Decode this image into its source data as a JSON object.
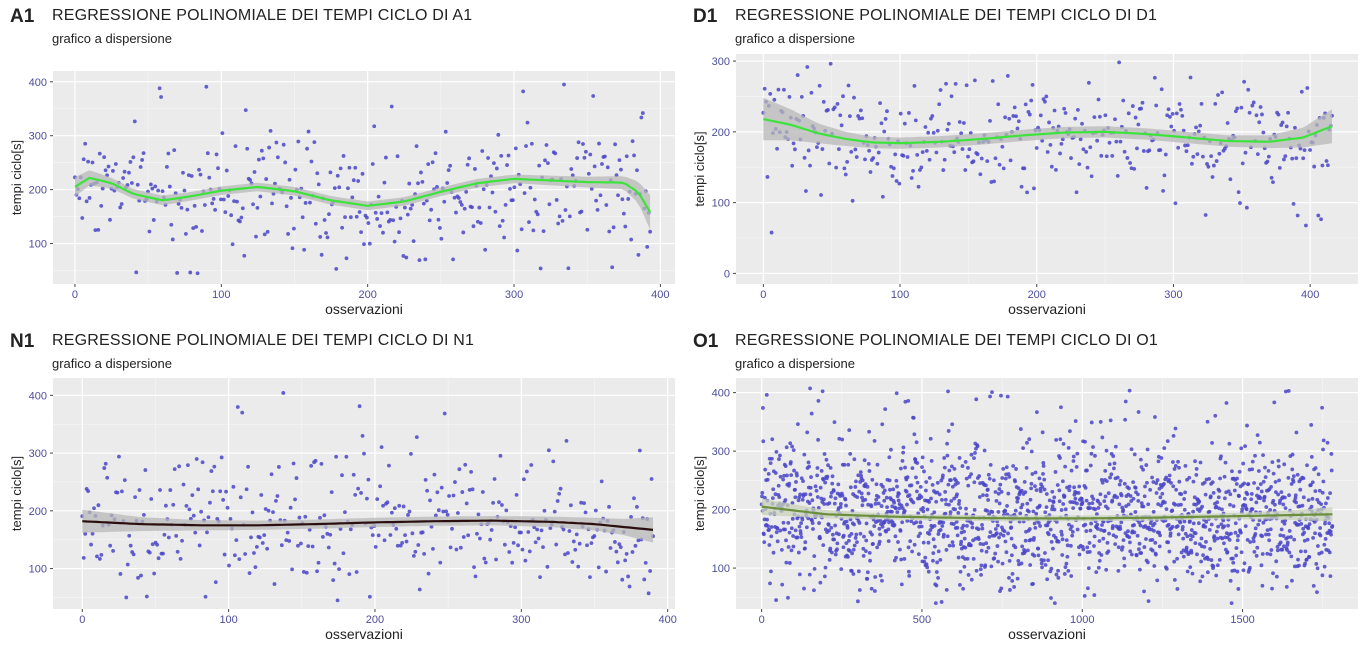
{
  "panels": [
    {
      "tag": "A1",
      "title": "REGRESSIONE POLINOMIALE DEI TEMPI CICLO DI A1",
      "subtitle": "grafico a dispersione",
      "xlabel": "osservazioni",
      "ylabel": "tempi ciclo[s]"
    },
    {
      "tag": "D1",
      "title": "REGRESSIONE POLINOMIALE DEI TEMPI CICLO DI D1",
      "subtitle": "grafico a dispersione",
      "xlabel": "osservazioni",
      "ylabel": "tempi ciclo[s]"
    },
    {
      "tag": "N1",
      "title": "REGRESSIONE POLINOMIALE DEI TEMPI CICLO DI N1",
      "subtitle": "grafico a dispersione",
      "xlabel": "osservazioni",
      "ylabel": "tempi ciclo[s]"
    },
    {
      "tag": "O1",
      "title": "REGRESSIONE POLINOMIALE DEI TEMPI CICLO DI O1",
      "subtitle": "grafico a dispersione",
      "xlabel": "osservazioni",
      "ylabel": "tempi ciclo[s]"
    }
  ],
  "chart_data": [
    {
      "type": "scatter",
      "title": "REGRESSIONE POLINOMIALE DEI TEMPI CICLO DI A1",
      "subtitle": "grafico a dispersione",
      "xlabel": "osservazioni",
      "ylabel": "tempi ciclo[s]",
      "xlim": [
        -15,
        410
      ],
      "ylim": [
        25,
        420
      ],
      "xticks": [
        0,
        100,
        200,
        300,
        400
      ],
      "yticks": [
        100,
        200,
        300,
        400
      ],
      "n_points": 395,
      "point_color": "#4a45c8",
      "point_y_range": [
        45,
        410
      ],
      "background": "#ebebeb",
      "grid": true,
      "fit": {
        "method": "polynomial regression with confidence band",
        "color": "#3be33b",
        "band_color": "#b8b8b8",
        "x": [
          0,
          10,
          25,
          40,
          60,
          80,
          100,
          125,
          150,
          175,
          200,
          225,
          250,
          275,
          300,
          325,
          350,
          375,
          385,
          393
        ],
        "y": [
          205,
          222,
          212,
          192,
          180,
          188,
          198,
          205,
          197,
          180,
          170,
          178,
          196,
          212,
          220,
          217,
          214,
          213,
          195,
          158
        ],
        "band_halfwidth": [
          18,
          14,
          10,
          9,
          9,
          8,
          8,
          8,
          8,
          8,
          8,
          8,
          8,
          8,
          8,
          9,
          10,
          12,
          20,
          32
        ]
      }
    },
    {
      "type": "scatter",
      "title": "REGRESSIONE POLINOMIALE DEI TEMPI CICLO DI D1",
      "subtitle": "grafico a dispersione",
      "xlabel": "osservazioni",
      "ylabel": "tempi ciclo[s]",
      "xlim": [
        -20,
        435
      ],
      "ylim": [
        -15,
        310
      ],
      "xticks": [
        0,
        100,
        200,
        300,
        400
      ],
      "yticks": [
        0,
        100,
        200,
        300
      ],
      "n_points": 415,
      "point_color": "#4a45c8",
      "point_y_range": [
        55,
        300
      ],
      "background": "#ebebeb",
      "grid": true,
      "fit": {
        "method": "polynomial regression with confidence band",
        "color": "#3be33b",
        "band_color": "#b8b8b8",
        "x": [
          0,
          20,
          40,
          60,
          80,
          100,
          130,
          160,
          190,
          220,
          250,
          280,
          310,
          340,
          370,
          395,
          416
        ],
        "y": [
          218,
          210,
          198,
          190,
          185,
          184,
          186,
          190,
          195,
          199,
          200,
          197,
          192,
          187,
          186,
          192,
          208
        ],
        "band_halfwidth": [
          30,
          22,
          14,
          10,
          8,
          8,
          8,
          8,
          8,
          8,
          8,
          8,
          8,
          8,
          9,
          14,
          24
        ]
      }
    },
    {
      "type": "scatter",
      "title": "REGRESSIONE POLINOMIALE DEI TEMPI CICLO DI N1",
      "subtitle": "grafico a dispersione",
      "xlabel": "osservazioni",
      "ylabel": "tempi ciclo[s]",
      "xlim": [
        -20,
        405
      ],
      "ylim": [
        30,
        430
      ],
      "xticks": [
        0,
        100,
        200,
        300,
        400
      ],
      "yticks": [
        100,
        200,
        300,
        400
      ],
      "n_points": 390,
      "point_color": "#4a45c8",
      "point_y_range": [
        45,
        410
      ],
      "background": "#ebebeb",
      "grid": true,
      "fit": {
        "method": "polynomial regression with confidence band",
        "color": "#2b0f0f",
        "band_color": "#b8b8b8",
        "x": [
          0,
          40,
          80,
          120,
          160,
          200,
          240,
          280,
          320,
          350,
          370,
          390
        ],
        "y": [
          182,
          177,
          175,
          175,
          177,
          180,
          182,
          183,
          181,
          177,
          172,
          167
        ],
        "band_halfwidth": [
          20,
          12,
          9,
          8,
          8,
          8,
          8,
          8,
          9,
          11,
          14,
          22
        ]
      }
    },
    {
      "type": "scatter",
      "title": "REGRESSIONE POLINOMIALE DEI TEMPI CICLO DI O1",
      "subtitle": "grafico a dispersione",
      "xlabel": "osservazioni",
      "ylabel": "tempi ciclo[s]",
      "xlim": [
        -80,
        1860
      ],
      "ylim": [
        30,
        425
      ],
      "xticks": [
        0,
        500,
        1000,
        1500
      ],
      "yticks": [
        100,
        200,
        300,
        400
      ],
      "n_points": 1780,
      "point_color": "#4a45c8",
      "point_y_range": [
        40,
        410
      ],
      "background": "#ebebeb",
      "grid": true,
      "fit": {
        "method": "polynomial regression with confidence band",
        "color": "#6b8f3f",
        "band_color": "#c8d1b8",
        "x": [
          0,
          200,
          400,
          600,
          800,
          1000,
          1200,
          1400,
          1600,
          1780
        ],
        "y": [
          205,
          192,
          188,
          186,
          185,
          185,
          186,
          188,
          190,
          192
        ],
        "band_halfwidth": [
          14,
          7,
          5,
          5,
          5,
          5,
          5,
          5,
          7,
          12
        ]
      }
    }
  ]
}
